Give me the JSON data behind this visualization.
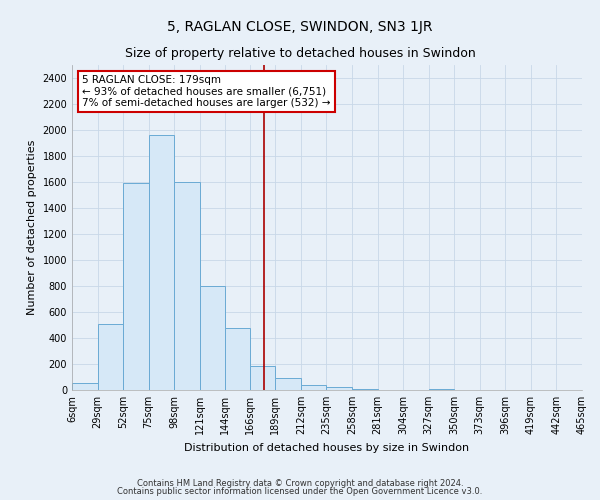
{
  "title": "5, RAGLAN CLOSE, SWINDON, SN3 1JR",
  "subtitle": "Size of property relative to detached houses in Swindon",
  "xlabel": "Distribution of detached houses by size in Swindon",
  "ylabel": "Number of detached properties",
  "bin_edges": [
    6,
    29,
    52,
    75,
    98,
    121,
    144,
    166,
    189,
    212,
    235,
    258,
    281,
    304,
    327,
    350,
    373,
    396,
    419,
    442,
    465
  ],
  "bar_heights": [
    55,
    505,
    1590,
    1960,
    1600,
    800,
    475,
    185,
    95,
    35,
    25,
    10,
    0,
    0,
    10,
    0,
    0,
    0,
    0,
    0
  ],
  "bar_fill_color": "#d6e8f7",
  "bar_edge_color": "#6aaad4",
  "vline_x": 179,
  "vline_color": "#aa0000",
  "annotation_title": "5 RAGLAN CLOSE: 179sqm",
  "annotation_line1": "← 93% of detached houses are smaller (6,751)",
  "annotation_line2": "7% of semi-detached houses are larger (532) →",
  "annotation_box_facecolor": "#ffffff",
  "annotation_box_edgecolor": "#cc0000",
  "footer1": "Contains HM Land Registry data © Crown copyright and database right 2024.",
  "footer2": "Contains public sector information licensed under the Open Government Licence v3.0.",
  "ylim": [
    0,
    2500
  ],
  "yticks": [
    0,
    200,
    400,
    600,
    800,
    1000,
    1200,
    1400,
    1600,
    1800,
    2000,
    2200,
    2400
  ],
  "plot_bg_color": "#e8f0f8",
  "fig_bg_color": "#e8f0f8",
  "grid_color": "#c8d8e8",
  "title_fontsize": 10,
  "subtitle_fontsize": 9,
  "axis_label_fontsize": 8,
  "tick_label_fontsize": 7,
  "annotation_fontsize": 7.5,
  "footer_fontsize": 6
}
